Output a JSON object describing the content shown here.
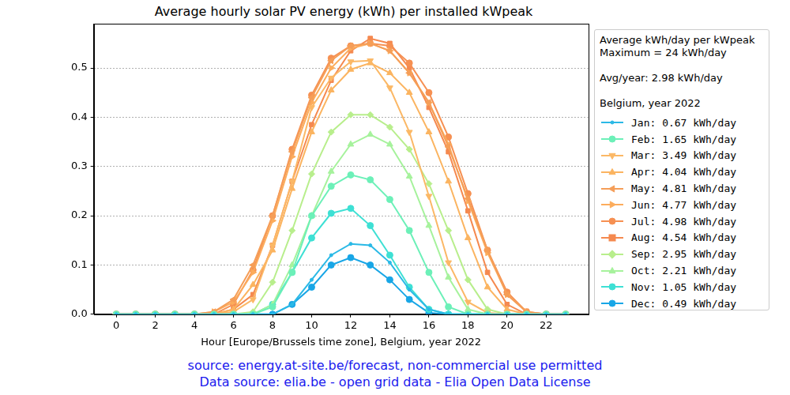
{
  "chart_data": {
    "type": "line",
    "title": "Average hourly solar PV energy (kWh) per installed kWpeak",
    "x_label": "Hour [Europe/Brussels time zone], Belgium, year 2022",
    "x": [
      0,
      1,
      2,
      3,
      4,
      5,
      6,
      7,
      8,
      9,
      10,
      11,
      12,
      13,
      14,
      15,
      16,
      17,
      18,
      19,
      20,
      21,
      22,
      23
    ],
    "xlim": [
      -1.15,
      24.15
    ],
    "xticks": [
      0,
      2,
      4,
      6,
      8,
      10,
      12,
      14,
      16,
      18,
      20,
      22
    ],
    "ylim": [
      0,
      0.59
    ],
    "yticks": [
      {
        "value": 0,
        "label": "0.0"
      },
      0.1,
      0.2,
      0.3,
      0.4,
      0.5
    ],
    "grid": true,
    "legend": "right",
    "legend_title": [
      [
        "Average kWh/day per kWpeak",
        "Maximum = 24 kWh/day"
      ],
      [
        "Avg/year: 2.98 kWh/day"
      ],
      [
        "Belgium, year 2022"
      ]
    ],
    "annotations": [
      "source: energy.at-site.be/forecast, non-commercial use permitted",
      "Data source: elia.be - open grid data - Elia Open Data License"
    ],
    "series": [
      {
        "name": "Jan: 0.67 kWh/day",
        "color": "#2ab9e6",
        "marker": "point",
        "values": [
          0,
          0,
          0,
          0,
          0,
          0,
          0,
          0,
          0,
          0.02,
          0.07,
          0.12,
          0.143,
          0.14,
          0.105,
          0.05,
          0.01,
          0,
          0,
          0,
          0,
          0,
          0,
          0
        ]
      },
      {
        "name": "Feb: 1.65 kWh/day",
        "color": "#6cf0b8",
        "marker": "circle",
        "values": [
          0,
          0,
          0,
          0,
          0,
          0,
          0,
          0,
          0.015,
          0.085,
          0.2,
          0.26,
          0.283,
          0.273,
          0.233,
          0.17,
          0.085,
          0.015,
          0,
          0,
          0,
          0,
          0,
          0
        ]
      },
      {
        "name": "Mar: 3.49 kWh/day",
        "color": "#fbb866",
        "marker": "triangle_down",
        "values": [
          0,
          0,
          0,
          0,
          0,
          0,
          0.005,
          0.03,
          0.14,
          0.27,
          0.42,
          0.48,
          0.513,
          0.515,
          0.46,
          0.37,
          0.24,
          0.105,
          0.025,
          0.003,
          0,
          0,
          0,
          0
        ]
      },
      {
        "name": "Apr: 4.04 kWh/day",
        "color": "#fbb460",
        "marker": "triangle_up",
        "values": [
          0,
          0,
          0,
          0,
          0,
          0,
          0.01,
          0.06,
          0.13,
          0.255,
          0.37,
          0.455,
          0.497,
          0.51,
          0.49,
          0.45,
          0.37,
          0.27,
          0.155,
          0.055,
          0.01,
          0,
          0,
          0
        ]
      },
      {
        "name": "May: 4.81 kWh/day",
        "color": "#f59e58",
        "marker": "triangle_left",
        "values": [
          0,
          0,
          0,
          0,
          0,
          0.005,
          0.03,
          0.1,
          0.2,
          0.33,
          0.44,
          0.515,
          0.545,
          0.55,
          0.535,
          0.49,
          0.43,
          0.34,
          0.235,
          0.13,
          0.04,
          0.005,
          0,
          0
        ]
      },
      {
        "name": "Jun: 4.77 kWh/day",
        "color": "#fcac5c",
        "marker": "triangle_right",
        "values": [
          0,
          0,
          0,
          0,
          0,
          0.005,
          0.025,
          0.085,
          0.19,
          0.32,
          0.43,
          0.5,
          0.54,
          0.55,
          0.535,
          0.49,
          0.43,
          0.345,
          0.23,
          0.125,
          0.04,
          0.005,
          0,
          0
        ]
      },
      {
        "name": "Jul: 4.98 kWh/day",
        "color": "#f69052",
        "marker": "circle",
        "values": [
          0,
          0,
          0,
          0,
          0,
          0,
          0.02,
          0.09,
          0.2,
          0.335,
          0.445,
          0.52,
          0.545,
          0.55,
          0.545,
          0.51,
          0.45,
          0.36,
          0.245,
          0.13,
          0.045,
          0.005,
          0,
          0
        ]
      },
      {
        "name": "Aug: 4.54 kWh/day",
        "color": "#f5894f",
        "marker": "square",
        "values": [
          0,
          0,
          0,
          0,
          0,
          0,
          0.01,
          0.04,
          0.14,
          0.27,
          0.385,
          0.475,
          0.535,
          0.56,
          0.55,
          0.5,
          0.42,
          0.33,
          0.21,
          0.085,
          0.02,
          0,
          0,
          0
        ]
      },
      {
        "name": "Sep: 2.95 kWh/day",
        "color": "#b8ee8c",
        "marker": "diamond",
        "values": [
          0,
          0,
          0,
          0,
          0,
          0,
          0,
          0.005,
          0.065,
          0.17,
          0.285,
          0.37,
          0.405,
          0.405,
          0.38,
          0.335,
          0.265,
          0.17,
          0.07,
          0.01,
          0,
          0,
          0,
          0
        ]
      },
      {
        "name": "Oct: 2.21 kWh/day",
        "color": "#a6f29c",
        "marker": "triangle_up",
        "values": [
          0,
          0,
          0,
          0,
          0,
          0,
          0,
          0,
          0.02,
          0.1,
          0.2,
          0.29,
          0.345,
          0.365,
          0.345,
          0.28,
          0.18,
          0.075,
          0.01,
          0,
          0,
          0,
          0,
          0
        ]
      },
      {
        "name": "Nov: 1.05 kWh/day",
        "color": "#3ee0d4",
        "marker": "circle",
        "values": [
          0,
          0,
          0,
          0,
          0,
          0,
          0,
          0,
          0.02,
          0.085,
          0.155,
          0.205,
          0.215,
          0.18,
          0.12,
          0.055,
          0.01,
          0,
          0,
          0,
          0,
          0,
          0,
          0
        ]
      },
      {
        "name": "Dec: 0.49 kWh/day",
        "color": "#18a6e6",
        "marker": "circle",
        "values": [
          0,
          0,
          0,
          0,
          0,
          0,
          0,
          0,
          0,
          0.02,
          0.055,
          0.1,
          0.115,
          0.1,
          0.07,
          0.03,
          0.003,
          0,
          0,
          0,
          0,
          0,
          0,
          0
        ]
      }
    ]
  }
}
